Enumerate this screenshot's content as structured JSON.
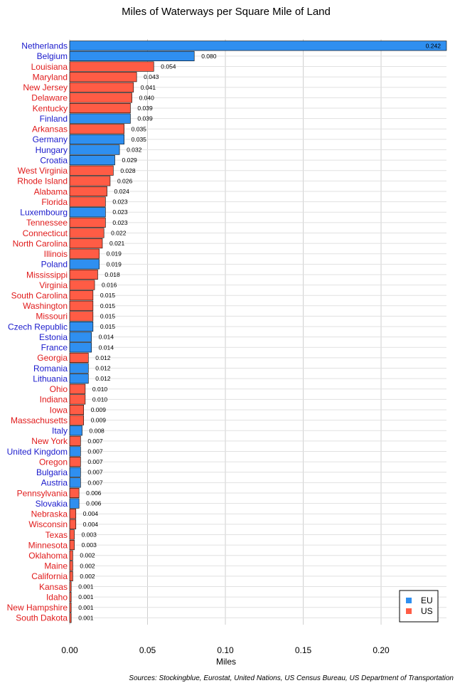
{
  "chart_data": {
    "type": "bar",
    "orientation": "horizontal",
    "title": "Miles of Waterways per Square Mile of Land",
    "xlabel": "Miles",
    "ylabel": "",
    "xlim": [
      0,
      0.242
    ],
    "x_ticks": [
      "0.00",
      "0.05",
      "0.10",
      "0.15",
      "0.20"
    ],
    "x_tick_values": [
      0,
      0.05,
      0.1,
      0.15,
      0.2
    ],
    "grid": true,
    "legend_position": "bottom-right",
    "source": "Sources: Stockingblue, Eurostat, United Nations, US Census Bureau, US Department of Transportation",
    "groups": [
      {
        "name": "EU",
        "color": "#2f8ff0",
        "label_color": "#1a1acc"
      },
      {
        "name": "US",
        "color": "#ff5c45",
        "label_color": "#e01a1a"
      }
    ],
    "categories": [
      "Netherlands",
      "Belgium",
      "Louisiana",
      "Maryland",
      "New Jersey",
      "Delaware",
      "Kentucky",
      "Finland",
      "Arkansas",
      "Germany",
      "Hungary",
      "Croatia",
      "West Virginia",
      "Rhode Island",
      "Alabama",
      "Florida",
      "Luxembourg",
      "Tennessee",
      "Connecticut",
      "North Carolina",
      "Illinois",
      "Poland",
      "Mississippi",
      "Virginia",
      "South Carolina",
      "Washington",
      "Missouri",
      "Czech Republic",
      "Estonia",
      "France",
      "Georgia",
      "Romania",
      "Lithuania",
      "Ohio",
      "Indiana",
      "Iowa",
      "Massachusetts",
      "Italy",
      "New York",
      "United Kingdom",
      "Oregon",
      "Bulgaria",
      "Austria",
      "Pennsylvania",
      "Slovakia",
      "Nebraska",
      "Wisconsin",
      "Texas",
      "Minnesota",
      "Oklahoma",
      "Maine",
      "California",
      "Kansas",
      "Idaho",
      "New Hampshire",
      "South Dakota"
    ],
    "values": [
      0.242,
      0.08,
      0.054,
      0.043,
      0.041,
      0.04,
      0.039,
      0.039,
      0.035,
      0.035,
      0.032,
      0.029,
      0.028,
      0.026,
      0.024,
      0.023,
      0.023,
      0.023,
      0.022,
      0.021,
      0.019,
      0.019,
      0.018,
      0.016,
      0.015,
      0.015,
      0.015,
      0.015,
      0.014,
      0.014,
      0.012,
      0.012,
      0.012,
      0.01,
      0.01,
      0.009,
      0.009,
      0.008,
      0.007,
      0.007,
      0.007,
      0.007,
      0.007,
      0.006,
      0.006,
      0.004,
      0.004,
      0.003,
      0.003,
      0.002,
      0.002,
      0.002,
      0.001,
      0.001,
      0.001,
      0.001
    ],
    "value_labels": [
      "0.242",
      "0.080",
      "0.054",
      "0.043",
      "0.041",
      "0.040",
      "0.039",
      "0.039",
      "0.035",
      "0.035",
      "0.032",
      "0.029",
      "0.028",
      "0.026",
      "0.024",
      "0.023",
      "0.023",
      "0.023",
      "0.022",
      "0.021",
      "0.019",
      "0.019",
      "0.018",
      "0.016",
      "0.015",
      "0.015",
      "0.015",
      "0.015",
      "0.014",
      "0.014",
      "0.012",
      "0.012",
      "0.012",
      "0.010",
      "0.010",
      "0.009",
      "0.009",
      "0.008",
      "0.007",
      "0.007",
      "0.007",
      "0.007",
      "0.007",
      "0.006",
      "0.006",
      "0.004",
      "0.004",
      "0.003",
      "0.003",
      "0.002",
      "0.002",
      "0.002",
      "0.001",
      "0.001",
      "0.001",
      "0.001"
    ],
    "group_of": [
      "EU",
      "EU",
      "US",
      "US",
      "US",
      "US",
      "US",
      "EU",
      "US",
      "EU",
      "EU",
      "EU",
      "US",
      "US",
      "US",
      "US",
      "EU",
      "US",
      "US",
      "US",
      "US",
      "EU",
      "US",
      "US",
      "US",
      "US",
      "US",
      "EU",
      "EU",
      "EU",
      "US",
      "EU",
      "EU",
      "US",
      "US",
      "US",
      "US",
      "EU",
      "US",
      "EU",
      "US",
      "EU",
      "EU",
      "US",
      "EU",
      "US",
      "US",
      "US",
      "US",
      "US",
      "US",
      "US",
      "US",
      "US",
      "US",
      "US"
    ]
  }
}
